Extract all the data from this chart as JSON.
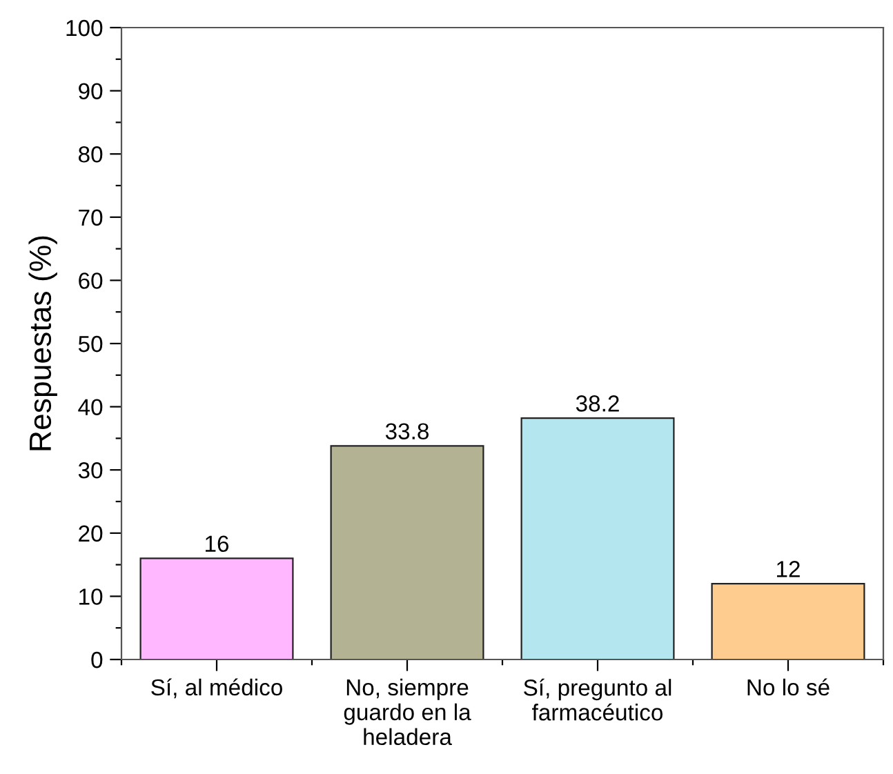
{
  "chart_data": {
    "type": "bar",
    "ylabel": "Respuestas (%)",
    "categories": [
      "Sí, al médico",
      "No, siempre\nguardo en la\nheladera",
      "Sí, pregunto al\nfarmacéutico",
      "No lo sé"
    ],
    "values": [
      16,
      33.8,
      38.2,
      12
    ],
    "colors": [
      "#ffb8ff",
      "#b3b393",
      "#b3e6ee",
      "#ffcc90"
    ],
    "data_labels": true,
    "ylim": [
      0,
      100
    ],
    "yticks": [
      0,
      10,
      20,
      30,
      40,
      50,
      60,
      70,
      80,
      90,
      100
    ],
    "grid": false
  }
}
